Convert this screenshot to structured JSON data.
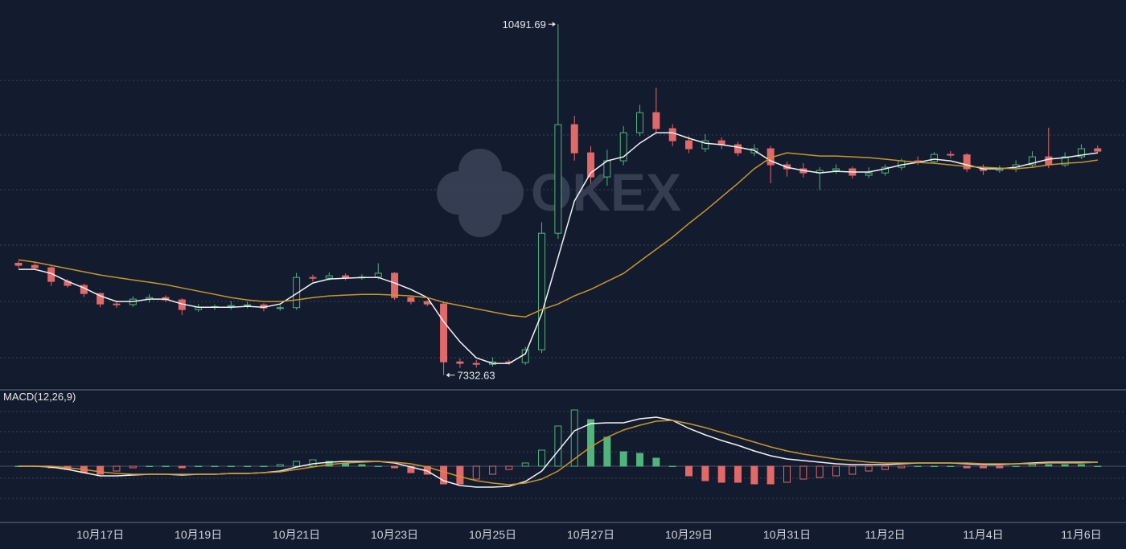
{
  "chart_data": [
    {
      "type": "candlestick",
      "watermark": "OKEX",
      "ylim": [
        7200,
        10710
      ],
      "up_color": "#4fb57a",
      "down_color": "#e36868",
      "categories": [
        null,
        null,
        null,
        null,
        null,
        "10月17日",
        null,
        null,
        null,
        null,
        null,
        "10月19日",
        null,
        null,
        null,
        null,
        null,
        "10月21日",
        null,
        null,
        null,
        null,
        null,
        "10月23日",
        null,
        null,
        null,
        null,
        null,
        "10月25日",
        null,
        null,
        null,
        null,
        null,
        "10月27日",
        null,
        null,
        null,
        null,
        null,
        "10月29日",
        null,
        null,
        null,
        null,
        null,
        "10月31日",
        null,
        null,
        null,
        null,
        null,
        "11月2日",
        null,
        null,
        null,
        null,
        null,
        "11月4日",
        null,
        null,
        null,
        null,
        null,
        "11月6日",
        null
      ],
      "open": [
        8340,
        8321,
        8299,
        8176,
        8140,
        8067,
        7973,
        7968,
        8017,
        8031,
        8010,
        7923,
        7944,
        7950,
        7959,
        7965,
        7937,
        7940,
        8212,
        8205,
        8227,
        8210,
        8215,
        8250,
        8031,
        7995,
        7973,
        7452,
        7438,
        7430,
        7452,
        7445,
        7561,
        8610,
        9588,
        9334,
        9117,
        9262,
        9515,
        9696,
        9552,
        9443,
        9371,
        9443,
        9407,
        9334,
        9371,
        9226,
        9190,
        9153,
        9175,
        9190,
        9132,
        9153,
        9204,
        9262,
        9255,
        9320,
        9316,
        9190,
        9175,
        9190,
        9226,
        9298,
        9226,
        9298,
        9371
      ],
      "high": [
        8360,
        8346,
        8314,
        8196,
        8155,
        8077,
        8003,
        8042,
        8061,
        8051,
        8025,
        7974,
        7970,
        7999,
        7995,
        7980,
        7965,
        8252,
        8237,
        8257,
        8247,
        8240,
        8340,
        8260,
        8046,
        8005,
        7993,
        7482,
        7468,
        7492,
        7472,
        7586,
        8710,
        10491.69,
        9668,
        9394,
        9362,
        9575,
        9766,
        9920,
        9592,
        9483,
        9503,
        9473,
        9432,
        9411,
        9396,
        9256,
        9240,
        9205,
        9230,
        9210,
        9203,
        9229,
        9282,
        9302,
        9340,
        9350,
        9331,
        9230,
        9220,
        9266,
        9348,
        9560,
        9338,
        9411,
        9401
      ],
      "low": [
        8296,
        8279,
        8136,
        8120,
        8037,
        7943,
        7938,
        7948,
        7987,
        7990,
        7873,
        7903,
        7919,
        7920,
        7934,
        7907,
        7912,
        7920,
        8175,
        8185,
        8185,
        8190,
        8195,
        8011,
        7970,
        7953,
        7332.63,
        7398,
        7400,
        7410,
        7425,
        7425,
        7531,
        8560,
        9264,
        9057,
        9037,
        9222,
        9485,
        9512,
        9393,
        9331,
        9341,
        9367,
        9304,
        9304,
        9060,
        9120,
        9113,
        9000,
        9145,
        9102,
        9107,
        9128,
        9179,
        9225,
        9235,
        9286,
        9160,
        9135,
        9155,
        9160,
        9206,
        9196,
        9206,
        9278,
        9329
      ],
      "close": [
        8321,
        8299,
        8176,
        8140,
        8067,
        7973,
        7968,
        8017,
        8031,
        8010,
        7923,
        7944,
        7950,
        7959,
        7965,
        7937,
        7940,
        8212,
        8205,
        8227,
        8210,
        8215,
        8250,
        8031,
        7995,
        7973,
        7452,
        7438,
        7430,
        7452,
        7445,
        7561,
        8610,
        9588,
        9334,
        9117,
        9262,
        9515,
        9696,
        9552,
        9443,
        9371,
        9443,
        9407,
        9334,
        9371,
        9226,
        9190,
        9153,
        9175,
        9190,
        9132,
        9153,
        9204,
        9262,
        9255,
        9320,
        9316,
        9190,
        9175,
        9190,
        9226,
        9298,
        9226,
        9298,
        9371,
        9349
      ],
      "lines": [
        {
          "color": "#f2f2f2",
          "values": [
            8285,
            8285,
            8248,
            8176,
            8118,
            8046,
            7995,
            7995,
            8017,
            8017,
            7973,
            7944,
            7944,
            7944,
            7952,
            7944,
            7973,
            8067,
            8162,
            8198,
            8205,
            8212,
            8212,
            8162,
            8104,
            8031,
            7814,
            7633,
            7488,
            7438,
            7438,
            7524,
            7886,
            8393,
            8900,
            9153,
            9262,
            9298,
            9421,
            9515,
            9515,
            9465,
            9421,
            9407,
            9385,
            9356,
            9262,
            9204,
            9175,
            9153,
            9168,
            9161,
            9161,
            9190,
            9226,
            9248,
            9277,
            9262,
            9226,
            9190,
            9190,
            9204,
            9240,
            9277,
            9291,
            9313,
            9334
          ]
        },
        {
          "color": "#c8962b",
          "values": [
            8371,
            8350,
            8321,
            8292,
            8263,
            8234,
            8212,
            8190,
            8169,
            8147,
            8118,
            8089,
            8060,
            8031,
            8010,
            7995,
            7995,
            8010,
            8031,
            8046,
            8053,
            8060,
            8060,
            8053,
            8046,
            8031,
            7988,
            7959,
            7930,
            7901,
            7872,
            7857,
            7923,
            7973,
            8046,
            8104,
            8176,
            8248,
            8357,
            8466,
            8574,
            8697,
            8813,
            8936,
            9059,
            9190,
            9291,
            9334,
            9320,
            9305,
            9305,
            9298,
            9291,
            9277,
            9262,
            9248,
            9240,
            9226,
            9211,
            9204,
            9197,
            9190,
            9204,
            9226,
            9240,
            9248,
            9269
          ]
        }
      ]
    },
    {
      "type": "macd",
      "title": "MACD(12,26,9)",
      "ylim": [
        -350,
        400
      ],
      "up_color": "#4fb57a",
      "down_color": "#e36868",
      "histogram": [
        0,
        0,
        -10,
        -20,
        -40,
        -50,
        -30,
        -10,
        0,
        0,
        -10,
        0,
        0,
        0,
        0,
        0,
        10,
        30,
        40,
        30,
        20,
        10,
        0,
        -10,
        -40,
        -50,
        -110,
        -110,
        -80,
        -50,
        -20,
        20,
        100,
        250,
        350,
        290,
        180,
        90,
        80,
        50,
        0,
        -60,
        -90,
        -100,
        -100,
        -110,
        -110,
        -100,
        -80,
        -70,
        -60,
        -50,
        -30,
        -20,
        -10,
        0,
        0,
        0,
        -10,
        -10,
        -10,
        0,
        10,
        10,
        10,
        10,
        0
      ],
      "lines": [
        {
          "color": "#f2f2f2",
          "values": [
            0,
            0,
            -5,
            -20,
            -40,
            -60,
            -60,
            -55,
            -50,
            -50,
            -55,
            -50,
            -50,
            -45,
            -45,
            -40,
            -30,
            -5,
            15,
            25,
            30,
            30,
            30,
            20,
            -5,
            -30,
            -90,
            -120,
            -130,
            -130,
            -125,
            -95,
            -30,
            95,
            220,
            265,
            270,
            270,
            295,
            305,
            285,
            235,
            195,
            160,
            130,
            95,
            65,
            45,
            35,
            25,
            15,
            10,
            10,
            10,
            15,
            20,
            20,
            20,
            15,
            10,
            10,
            15,
            20,
            25,
            25,
            25,
            25
          ]
        },
        {
          "color": "#c8962b",
          "values": [
            0,
            0,
            0,
            -10,
            -20,
            -35,
            -45,
            -50,
            -50,
            -50,
            -50,
            -50,
            -50,
            -45,
            -45,
            -40,
            -35,
            -20,
            -5,
            10,
            20,
            25,
            30,
            25,
            15,
            -5,
            -35,
            -65,
            -90,
            -105,
            -115,
            -105,
            -80,
            -30,
            45,
            120,
            180,
            225,
            255,
            280,
            285,
            265,
            240,
            210,
            180,
            150,
            120,
            95,
            75,
            60,
            45,
            35,
            25,
            20,
            20,
            20,
            20,
            20,
            20,
            15,
            15,
            15,
            15,
            20,
            20,
            20,
            25
          ]
        }
      ]
    }
  ]
}
